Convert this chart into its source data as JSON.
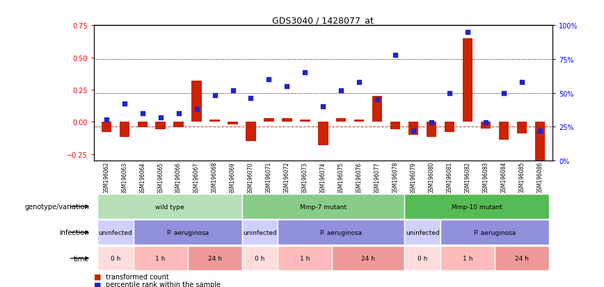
{
  "title": "GDS3040 / 1428077_at",
  "samples": [
    "GSM196062",
    "GSM196063",
    "GSM196064",
    "GSM196065",
    "GSM196066",
    "GSM196067",
    "GSM196068",
    "GSM196069",
    "GSM196070",
    "GSM196071",
    "GSM196072",
    "GSM196073",
    "GSM196074",
    "GSM196075",
    "GSM196076",
    "GSM196077",
    "GSM196078",
    "GSM196079",
    "GSM196080",
    "GSM196081",
    "GSM196082",
    "GSM196083",
    "GSM196084",
    "GSM196085",
    "GSM196086"
  ],
  "bar_values": [
    -0.08,
    -0.12,
    -0.04,
    -0.06,
    -0.04,
    0.32,
    0.02,
    -0.02,
    -0.15,
    0.03,
    0.03,
    0.02,
    -0.18,
    0.03,
    0.02,
    0.2,
    -0.06,
    -0.1,
    -0.12,
    -0.08,
    0.65,
    -0.05,
    -0.14,
    -0.09,
    -0.3
  ],
  "dot_values_pct": [
    30,
    42,
    35,
    32,
    35,
    38,
    48,
    52,
    46,
    60,
    55,
    65,
    40,
    52,
    58,
    45,
    78,
    22,
    28,
    50,
    95,
    28,
    50,
    58,
    22
  ],
  "bar_color": "#cc2200",
  "dot_color": "#2222cc",
  "ylim": [
    -0.3,
    0.75
  ],
  "y2lim": [
    0,
    100
  ],
  "yticks_left": [
    -0.25,
    0.0,
    0.25,
    0.5,
    0.75
  ],
  "yticks_right": [
    0,
    25,
    50,
    75,
    100
  ],
  "dotted_lines_pct": [
    50,
    75
  ],
  "dashed_line_pct": 25,
  "genotype_groups": [
    {
      "label": "wild type",
      "start": 0,
      "end": 8,
      "color": "#b8e0b8"
    },
    {
      "label": "Mmp-7 mutant",
      "start": 8,
      "end": 17,
      "color": "#88cc88"
    },
    {
      "label": "Mmp-10 mutant",
      "start": 17,
      "end": 25,
      "color": "#55bb55"
    }
  ],
  "infection_groups": [
    {
      "label": "uninfected",
      "start": 0,
      "end": 2,
      "color": "#d0d0ff"
    },
    {
      "label": "P. aeruginosa",
      "start": 2,
      "end": 8,
      "color": "#9090dd"
    },
    {
      "label": "uninfected",
      "start": 8,
      "end": 10,
      "color": "#d0d0ff"
    },
    {
      "label": "P. aeruginosa",
      "start": 10,
      "end": 17,
      "color": "#9090dd"
    },
    {
      "label": "uninfected",
      "start": 17,
      "end": 19,
      "color": "#d0d0ff"
    },
    {
      "label": "P. aeruginosa",
      "start": 19,
      "end": 25,
      "color": "#9090dd"
    }
  ],
  "time_groups": [
    {
      "label": "0 h",
      "start": 0,
      "end": 2,
      "color": "#ffdddd"
    },
    {
      "label": "1 h",
      "start": 2,
      "end": 5,
      "color": "#ffbbbb"
    },
    {
      "label": "24 h",
      "start": 5,
      "end": 8,
      "color": "#ee9999"
    },
    {
      "label": "0 h",
      "start": 8,
      "end": 10,
      "color": "#ffdddd"
    },
    {
      "label": "1 h",
      "start": 10,
      "end": 13,
      "color": "#ffbbbb"
    },
    {
      "label": "24 h",
      "start": 13,
      "end": 17,
      "color": "#ee9999"
    },
    {
      "label": "0 h",
      "start": 17,
      "end": 19,
      "color": "#ffdddd"
    },
    {
      "label": "1 h",
      "start": 19,
      "end": 22,
      "color": "#ffbbbb"
    },
    {
      "label": "24 h",
      "start": 22,
      "end": 25,
      "color": "#ee9999"
    }
  ],
  "row_labels": [
    "genotype/variation",
    "infection",
    "time"
  ],
  "legend_items": [
    {
      "label": "transformed count",
      "color": "#cc2200"
    },
    {
      "label": "percentile rank within the sample",
      "color": "#2222cc"
    }
  ]
}
